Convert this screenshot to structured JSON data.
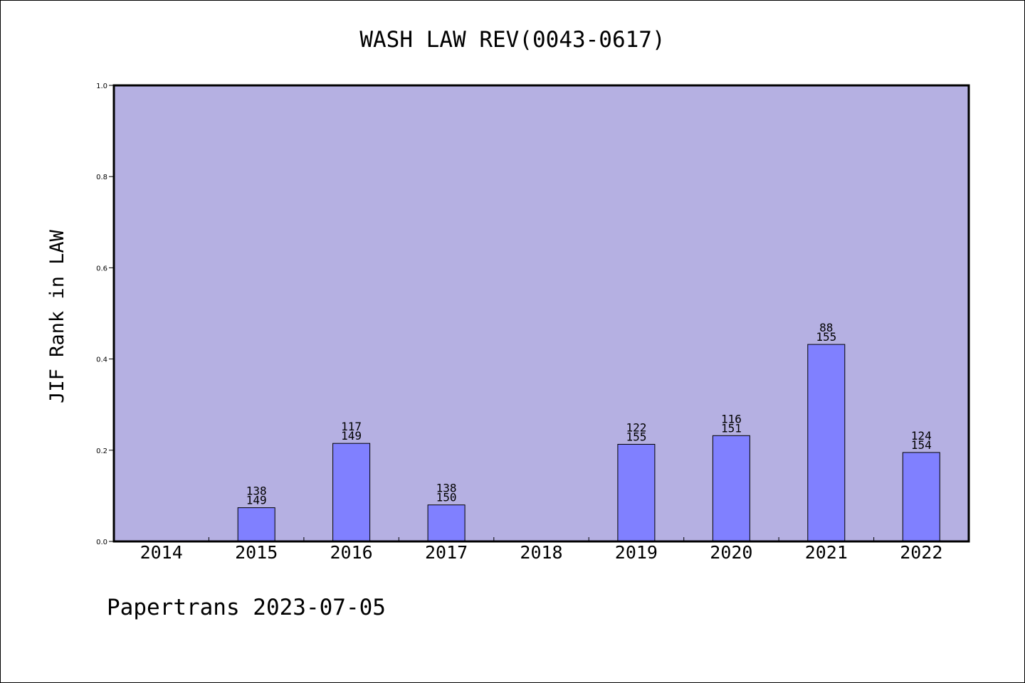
{
  "chart_data": {
    "type": "bar",
    "title": "WASH LAW REV(0043-0617)",
    "xlabel": "",
    "ylabel": "JIF Rank in LAW",
    "ylim": [
      0,
      1.0
    ],
    "yticks": [
      "0.0",
      "0.2",
      "0.4",
      "0.6",
      "0.8",
      "1.0"
    ],
    "categories": [
      "2014",
      "2015",
      "2016",
      "2017",
      "2018",
      "2019",
      "2020",
      "2021",
      "2022"
    ],
    "values": [
      null,
      0.074,
      0.215,
      0.08,
      null,
      0.213,
      0.232,
      0.432,
      0.195
    ],
    "rank_labels": [
      null,
      [
        "138",
        "149"
      ],
      [
        "117",
        "149"
      ],
      [
        "138",
        "150"
      ],
      null,
      [
        "122",
        "155"
      ],
      [
        "116",
        "151"
      ],
      [
        "88",
        "155"
      ],
      [
        "124",
        "154"
      ]
    ],
    "grid": false,
    "legend": "none",
    "colors": {
      "plot_background": "#b5b0e2",
      "bar_fill": "#8080ff",
      "bar_edge": "#000000"
    }
  },
  "footer": {
    "text": "Papertrans 2023-07-05"
  }
}
